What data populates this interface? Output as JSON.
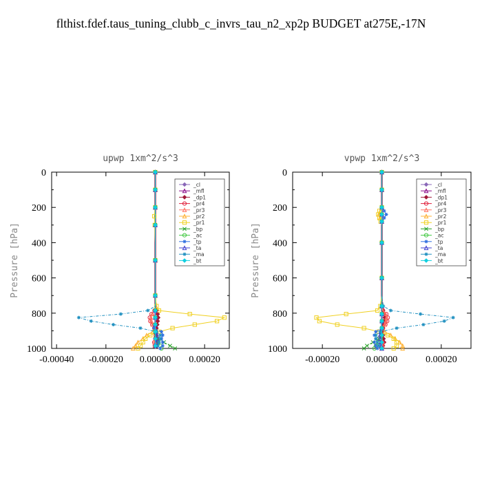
{
  "figure": {
    "title": "flthist.fdef.taus_tuning_clubb_c_invrs_tau_n2_xp2p  BUDGET at275E,-17N"
  },
  "legend_labels": [
    "_cl",
    "_mfl",
    "_dp1",
    "_pr4",
    "_pr3",
    "_pr2",
    "_pr1",
    "_bp",
    "_ac",
    "_tp",
    "_ta",
    "_ma",
    "_bt"
  ],
  "series_colors": [
    "#8a68b8",
    "#8a0a8a",
    "#a01838",
    "#e0203a",
    "#ff7060",
    "#ffb030",
    "#f0d020",
    "#22a022",
    "#40c840",
    "#3070e0",
    "#4040d0",
    "#2090c0",
    "#10d0e0"
  ],
  "chart_data": [
    {
      "type": "line",
      "title": "upwp   1xm^2/s^3",
      "ylabel": "Pressure [hPa]",
      "xlabel": "",
      "xlim": [
        -0.00042,
        0.0003
      ],
      "ylim": [
        1000,
        0
      ],
      "xticks": [
        "-0.00040",
        "-0.00020",
        "0.00000",
        "0.00020"
      ],
      "xtick_values": [
        -0.0004,
        -0.0002,
        0.0,
        0.0002
      ],
      "yticks": [
        "0",
        "200",
        "400",
        "600",
        "800",
        "1000"
      ],
      "ytick_values": [
        0,
        200,
        400,
        600,
        800,
        1000
      ],
      "legend": "top-right",
      "pressure": [
        0,
        50,
        100,
        150,
        200,
        250,
        300,
        400,
        500,
        600,
        700,
        760,
        785,
        805,
        825,
        845,
        865,
        885,
        905,
        925,
        945,
        965,
        985,
        1000
      ],
      "series": [
        {
          "name": "_cl",
          "values": [
            0,
            0,
            0,
            0,
            0,
            0,
            0,
            0,
            0,
            0,
            0,
            0,
            0,
            0,
            0,
            0,
            0,
            0,
            0,
            0,
            0,
            0,
            0,
            0
          ]
        },
        {
          "name": "_mfl",
          "values": [
            0,
            0,
            0,
            0,
            0,
            0,
            0,
            0,
            0,
            0,
            0,
            0,
            0,
            0,
            0,
            0,
            0,
            0,
            0,
            0,
            0,
            0,
            0,
            0
          ]
        },
        {
          "name": "_dp1",
          "values": [
            0,
            0,
            0,
            0,
            0,
            0,
            0,
            0,
            0,
            0,
            0,
            0,
            5e-06,
            1e-05,
            1.2e-05,
            1e-05,
            8e-06,
            5e-06,
            4e-06,
            5e-06,
            8e-06,
            1e-05,
            5e-06,
            0
          ]
        },
        {
          "name": "_pr4",
          "values": [
            0,
            0,
            0,
            0,
            0,
            0,
            0,
            0,
            0,
            0,
            0,
            0,
            -3e-06,
            -1.5e-05,
            -2.2e-05,
            -2e-05,
            -1.2e-05,
            -4e-06,
            0,
            2e-06,
            0,
            -4e-06,
            -2e-06,
            0
          ]
        },
        {
          "name": "_pr3",
          "values": [
            0,
            0,
            0,
            0,
            0,
            0,
            0,
            0,
            0,
            0,
            0,
            0,
            -3e-06,
            -1.2e-05,
            -1.8e-05,
            -1.6e-05,
            -1e-05,
            -3e-06,
            0,
            2e-06,
            0,
            -3e-06,
            -2e-06,
            0
          ]
        },
        {
          "name": "_pr2",
          "values": [
            0,
            0,
            0,
            0,
            0,
            0,
            -2e-06,
            0,
            0,
            0,
            0,
            0,
            0,
            0,
            0,
            0,
            0,
            0,
            -1e-05,
            -3.5e-05,
            -5e-05,
            -7e-05,
            -8e-05,
            -9e-05
          ]
        },
        {
          "name": "_pr1",
          "values": [
            0,
            0,
            0,
            0,
            0,
            -4e-06,
            -2e-06,
            0,
            0,
            0,
            0,
            5e-06,
            1.5e-05,
            0.00014,
            0.00028,
            0.00025,
            0.00016,
            7e-05,
            1.5e-05,
            -2e-05,
            -4e-05,
            -5e-05,
            -6e-05,
            -7e-05
          ]
        },
        {
          "name": "_bp",
          "values": [
            0,
            0,
            0,
            0,
            0,
            0,
            0,
            0,
            0,
            0,
            0,
            0,
            0,
            0,
            0,
            0,
            0,
            0,
            0,
            2e-06,
            1e-05,
            3.5e-05,
            6e-05,
            8e-05
          ]
        },
        {
          "name": "_ac",
          "values": [
            0,
            0,
            0,
            0,
            0,
            0,
            0,
            0,
            0,
            0,
            0,
            0,
            0,
            0,
            0,
            0,
            0,
            0,
            0,
            0,
            4e-06,
            1.2e-05,
            2e-05,
            2.5e-05
          ]
        },
        {
          "name": "_tp",
          "values": [
            0,
            0,
            0,
            0,
            0,
            0,
            0,
            0,
            0,
            0,
            0,
            0,
            0,
            0,
            0,
            0,
            0,
            -5e-06,
            2.5e-05,
            3e-05,
            2.5e-05,
            3e-05,
            3e-05,
            2e-05
          ]
        },
        {
          "name": "_ta",
          "values": [
            0,
            0,
            0,
            0,
            0,
            0,
            0,
            0,
            0,
            0,
            0,
            0,
            0,
            0,
            0,
            0,
            0,
            0,
            4e-06,
            6e-06,
            6e-06,
            4e-06,
            2e-06,
            0
          ]
        },
        {
          "name": "_ma",
          "values": [
            0,
            0,
            0,
            0,
            0,
            0,
            0,
            0,
            0,
            0,
            0,
            0,
            -3e-05,
            -0.00014,
            -0.00031,
            -0.00026,
            -0.00017,
            -6e-05,
            5e-06,
            2e-05,
            2e-05,
            1.5e-05,
            1e-05,
            0
          ]
        },
        {
          "name": "_bt",
          "values": [
            0,
            0,
            0,
            0,
            0,
            0,
            0,
            0,
            0,
            0,
            0,
            0,
            0,
            0,
            0,
            0,
            0,
            0,
            0,
            0,
            0,
            0,
            0,
            0
          ]
        }
      ]
    },
    {
      "type": "line",
      "title": "vpwp   1xm^2/s^3",
      "ylabel": "Pressure [hPa]",
      "xlabel": "",
      "xlim": [
        -0.0003,
        0.0003
      ],
      "ylim": [
        1000,
        0
      ],
      "xticks": [
        "-0.00020",
        "0.00000",
        "0.00020"
      ],
      "xtick_values": [
        -0.0002,
        0.0,
        0.0002
      ],
      "yticks": [
        "0",
        "200",
        "400",
        "600",
        "800",
        "1000"
      ],
      "ytick_values": [
        0,
        200,
        400,
        600,
        800,
        1000
      ],
      "legend": "top-right",
      "pressure": [
        0,
        50,
        100,
        150,
        200,
        220,
        240,
        260,
        280,
        300,
        400,
        500,
        600,
        700,
        760,
        785,
        805,
        825,
        845,
        865,
        885,
        905,
        925,
        945,
        965,
        985,
        1000
      ],
      "series": [
        {
          "name": "_cl",
          "values": [
            0,
            0,
            0,
            0,
            0,
            0,
            0,
            0,
            0,
            0,
            0,
            0,
            0,
            0,
            0,
            0,
            0,
            0,
            0,
            0,
            0,
            0,
            0,
            0,
            0,
            0,
            0
          ]
        },
        {
          "name": "_mfl",
          "values": [
            0,
            0,
            0,
            0,
            0,
            0,
            0,
            0,
            0,
            0,
            0,
            0,
            0,
            0,
            0,
            0,
            0,
            0,
            0,
            0,
            0,
            0,
            0,
            0,
            0,
            0,
            0
          ]
        },
        {
          "name": "_dp1",
          "values": [
            0,
            0,
            0,
            0,
            0,
            0,
            0,
            0,
            0,
            0,
            0,
            0,
            0,
            0,
            0,
            4e-06,
            8e-06,
            1e-05,
            8e-06,
            6e-06,
            4e-06,
            3e-06,
            4e-06,
            6e-06,
            8e-06,
            4e-06,
            0
          ]
        },
        {
          "name": "_pr4",
          "values": [
            0,
            0,
            0,
            0,
            0,
            0,
            0,
            0,
            0,
            0,
            0,
            0,
            0,
            0,
            0,
            4e-06,
            1.5e-05,
            2e-05,
            1.8e-05,
            1.2e-05,
            4e-06,
            0,
            -2e-06,
            0,
            3e-06,
            2e-06,
            0
          ]
        },
        {
          "name": "_pr3",
          "values": [
            0,
            0,
            0,
            0,
            0,
            0,
            0,
            0,
            0,
            0,
            0,
            0,
            0,
            0,
            0,
            3e-06,
            1.2e-05,
            1.6e-05,
            1.4e-05,
            1e-05,
            3e-06,
            0,
            -2e-06,
            0,
            3e-06,
            2e-06,
            0
          ]
        },
        {
          "name": "_pr2",
          "values": [
            0,
            0,
            0,
            0,
            0,
            -5e-06,
            -1e-05,
            -6e-06,
            0,
            0,
            0,
            0,
            0,
            0,
            0,
            0,
            0,
            0,
            0,
            0,
            0,
            1e-05,
            3e-05,
            4.5e-05,
            6e-05,
            7e-05,
            7e-05
          ]
        },
        {
          "name": "_pr1",
          "values": [
            0,
            0,
            0,
            0,
            0,
            -8e-06,
            -1.2e-05,
            -8e-06,
            -4e-06,
            0,
            0,
            0,
            0,
            0,
            -5e-06,
            -1.5e-05,
            -0.00012,
            -0.00022,
            -0.00021,
            -0.00015,
            -6e-05,
            -1e-05,
            2e-05,
            4e-05,
            5e-05,
            5e-05,
            4e-05
          ]
        },
        {
          "name": "_bp",
          "values": [
            0,
            0,
            0,
            0,
            0,
            0,
            0,
            0,
            0,
            0,
            0,
            0,
            0,
            0,
            0,
            0,
            0,
            0,
            0,
            0,
            0,
            0,
            -3e-06,
            -1e-05,
            -3e-05,
            -5e-05,
            -6e-05
          ]
        },
        {
          "name": "_ac",
          "values": [
            0,
            0,
            0,
            0,
            0,
            0,
            0,
            0,
            0,
            0,
            0,
            0,
            0,
            0,
            0,
            0,
            0,
            0,
            0,
            0,
            0,
            0,
            0,
            -4e-06,
            -1.2e-05,
            -2e-05,
            -2.5e-05
          ]
        },
        {
          "name": "_tp",
          "values": [
            0,
            0,
            0,
            0,
            0,
            8e-06,
            1.5e-05,
            8e-06,
            0,
            0,
            0,
            0,
            0,
            0,
            0,
            0,
            0,
            0,
            0,
            0,
            0,
            -2e-05,
            -2.5e-05,
            -2e-05,
            -2.5e-05,
            -2e-05,
            -1.5e-05
          ]
        },
        {
          "name": "_ta",
          "values": [
            0,
            0,
            0,
            0,
            0,
            0,
            0,
            0,
            0,
            0,
            0,
            0,
            0,
            0,
            0,
            0,
            0,
            0,
            0,
            0,
            0,
            -4e-06,
            -6e-06,
            -6e-06,
            -4e-06,
            -2e-06,
            0
          ]
        },
        {
          "name": "_ma",
          "values": [
            0,
            0,
            0,
            0,
            0,
            0,
            0,
            0,
            0,
            0,
            0,
            0,
            0,
            0,
            5e-06,
            3e-05,
            0.00013,
            0.00024,
            0.00021,
            0.00014,
            5e-05,
            -5e-06,
            -2e-05,
            -2e-05,
            -1.5e-05,
            -1e-05,
            0
          ]
        },
        {
          "name": "_bt",
          "values": [
            0,
            0,
            0,
            0,
            0,
            0,
            0,
            0,
            0,
            0,
            0,
            0,
            0,
            0,
            0,
            0,
            0,
            0,
            0,
            0,
            0,
            0,
            0,
            0,
            0,
            0,
            0
          ]
        }
      ]
    }
  ]
}
